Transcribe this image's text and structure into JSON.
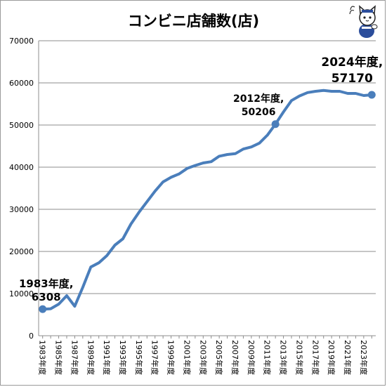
{
  "title": "コンビニ店舗数(店)",
  "chart_data": {
    "type": "line",
    "title": "コンビニ店舗数(店)",
    "ylim": [
      0,
      70000
    ],
    "yticks": [
      0,
      10000,
      20000,
      30000,
      40000,
      50000,
      60000,
      70000
    ],
    "grid": "horizontal",
    "line_color": "#4a7ebb",
    "x": [
      "1983年度",
      "1984年度",
      "1985年度",
      "1986年度",
      "1987年度",
      "1988年度",
      "1989年度",
      "1990年度",
      "1991年度",
      "1992年度",
      "1993年度",
      "1994年度",
      "1995年度",
      "1996年度",
      "1997年度",
      "1998年度",
      "1999年度",
      "2000年度",
      "2001年度",
      "2002年度",
      "2003年度",
      "2004年度",
      "2005年度",
      "2006年度",
      "2007年度",
      "2008年度",
      "2009年度",
      "2010年度",
      "2011年度",
      "2012年度",
      "2013年度",
      "2014年度",
      "2015年度",
      "2016年度",
      "2017年度",
      "2018年度",
      "2019年度",
      "2020年度",
      "2021年度",
      "2022年度",
      "2023年度",
      "2024年度"
    ],
    "xtick_labels": [
      "1983年度",
      "1985年度",
      "1987年度",
      "1989年度",
      "1991年度",
      "1993年度",
      "1995年度",
      "1997年度",
      "1999年度",
      "2001年度",
      "2003年度",
      "2005年度",
      "2007年度",
      "2009年度",
      "2011年度",
      "2013年度",
      "2015年度",
      "2017年度",
      "2019年度",
      "2021年度",
      "2023年度"
    ],
    "values": [
      6308,
      6400,
      7500,
      9500,
      7000,
      11500,
      16300,
      17300,
      19000,
      21500,
      23000,
      26500,
      29300,
      31800,
      34300,
      36500,
      37600,
      38400,
      39700,
      40400,
      41000,
      41300,
      42600,
      43000,
      43200,
      44300,
      44800,
      45700,
      47600,
      50206,
      53100,
      55800,
      56900,
      57700,
      58000,
      58200,
      58000,
      58000,
      57500,
      57500,
      57000,
      57170
    ],
    "annotations": [
      {
        "index": 0,
        "line1": "1983年度,",
        "line2": "6308"
      },
      {
        "index": 29,
        "line1": "2012年度,",
        "line2": "50206"
      },
      {
        "index": 41,
        "line1": "2024年度,",
        "line2": "57170"
      }
    ]
  }
}
